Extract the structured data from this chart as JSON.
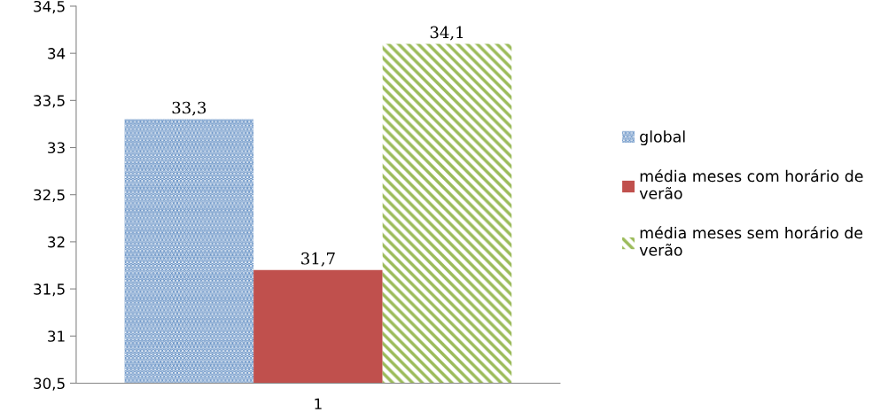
{
  "chart_data": {
    "type": "bar",
    "categories": [
      "1"
    ],
    "series": [
      {
        "name": "global",
        "color": "#4f81bd",
        "values": [
          33.3
        ],
        "value_labels": [
          "33,3"
        ]
      },
      {
        "name": "média meses com horário de verão",
        "color": "#c0504d",
        "values": [
          31.7
        ],
        "value_labels": [
          "31,7"
        ]
      },
      {
        "name": "média meses sem horário de verão",
        "color": "#9bbb59",
        "values": [
          34.1
        ],
        "value_labels": [
          "34,1"
        ]
      }
    ],
    "ylim": [
      30.5,
      34.5
    ],
    "yticks": [
      {
        "value": 30.5,
        "label": "30,5"
      },
      31,
      {
        "value": 31.5,
        "label": "31,5"
      },
      32,
      {
        "value": 32.5,
        "label": "32,5"
      },
      33,
      {
        "value": 33.5,
        "label": "33,5"
      },
      34,
      {
        "value": 34.5,
        "label": "34,5"
      }
    ],
    "grid": false,
    "legend": "right"
  }
}
